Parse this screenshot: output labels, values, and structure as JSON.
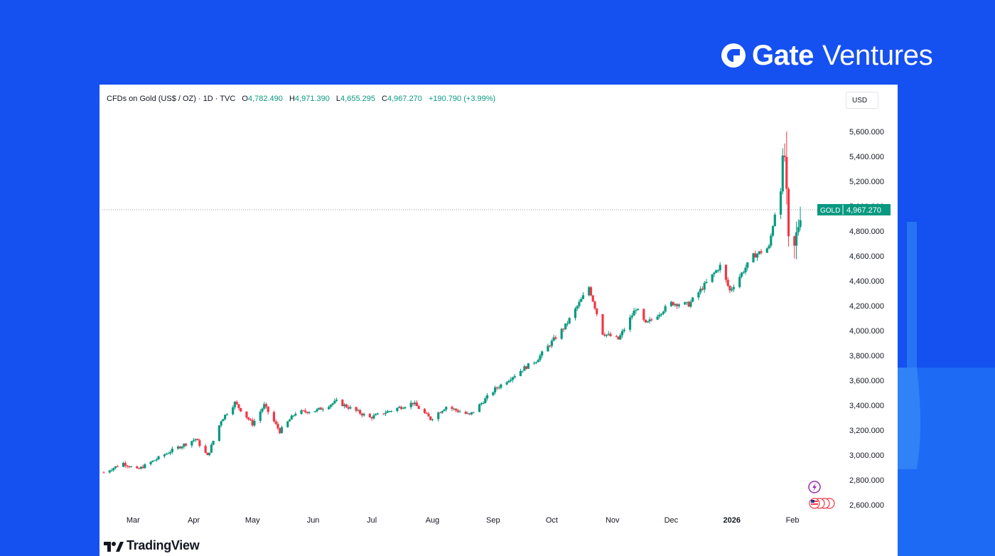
{
  "brand": {
    "name": "Gate",
    "suffix": "Ventures"
  },
  "chart_header": {
    "symbol": "CFDs on Gold (US$ / OZ) · 1D · TVC",
    "open_label": "O",
    "open": "4,782.490",
    "high_label": "H",
    "high": "4,971.390",
    "low_label": "L",
    "low": "4,655.295",
    "close_label": "C",
    "close": "4,967.270",
    "change": "+190.790 (+3.99%)",
    "currency": "USD"
  },
  "price_tag": {
    "label": "GOLD",
    "value": "4,967.270"
  },
  "footer": {
    "logo_text": "TradingView"
  },
  "colors": {
    "up": "#089981",
    "down": "#f23645",
    "background": "#1550f0"
  },
  "chart_data": {
    "type": "candlestick",
    "title": "CFDs on Gold (US$ / OZ) · 1D · TVC",
    "ylim": [
      2500,
      5700
    ],
    "yticks": [
      2600,
      2800,
      3000,
      3200,
      3400,
      3600,
      3800,
      4000,
      4200,
      4400,
      4600,
      4800,
      5000,
      5200,
      5400,
      5600
    ],
    "ytick_labels": [
      "2,600.000",
      "2,800.000",
      "3,000.000",
      "3,200.000",
      "3,400.000",
      "3,600.000",
      "3,800.000",
      "4,000.000",
      "4,200.000",
      "4,400.000",
      "4,600.000",
      "4,800.000",
      "5,000.000",
      "5,200.000",
      "5,400.000",
      "5,600.000"
    ],
    "x_start": "2025-02-14",
    "xticks": [
      {
        "label": "Mar",
        "date": "2025-03-01",
        "bold": false
      },
      {
        "label": "Apr",
        "date": "2025-04-01",
        "bold": false
      },
      {
        "label": "May",
        "date": "2025-05-01",
        "bold": false
      },
      {
        "label": "Jun",
        "date": "2025-06-01",
        "bold": false
      },
      {
        "label": "Jul",
        "date": "2025-07-01",
        "bold": false
      },
      {
        "label": "Aug",
        "date": "2025-08-01",
        "bold": false
      },
      {
        "label": "Sep",
        "date": "2025-09-01",
        "bold": false
      },
      {
        "label": "Oct",
        "date": "2025-10-01",
        "bold": false
      },
      {
        "label": "Nov",
        "date": "2025-11-01",
        "bold": false
      },
      {
        "label": "Dec",
        "date": "2025-12-01",
        "bold": false
      },
      {
        "label": "2026",
        "date": "2026-01-01",
        "bold": true
      },
      {
        "label": "Feb",
        "date": "2026-02-01",
        "bold": false
      }
    ],
    "anchors": [
      [
        "2025-02-14",
        2860
      ],
      [
        "2025-02-24",
        2935
      ],
      [
        "2025-03-03",
        2880
      ],
      [
        "2025-03-20",
        3030
      ],
      [
        "2025-04-02",
        3130
      ],
      [
        "2025-04-08",
        2990
      ],
      [
        "2025-04-15",
        3280
      ],
      [
        "2025-04-22",
        3420
      ],
      [
        "2025-05-01",
        3250
      ],
      [
        "2025-05-07",
        3400
      ],
      [
        "2025-05-15",
        3190
      ],
      [
        "2025-05-23",
        3340
      ],
      [
        "2025-06-03",
        3360
      ],
      [
        "2025-06-13",
        3430
      ],
      [
        "2025-06-30",
        3300
      ],
      [
        "2025-07-22",
        3420
      ],
      [
        "2025-07-31",
        3290
      ],
      [
        "2025-08-08",
        3390
      ],
      [
        "2025-08-20",
        3320
      ],
      [
        "2025-09-02",
        3530
      ],
      [
        "2025-09-16",
        3690
      ],
      [
        "2025-09-23",
        3760
      ],
      [
        "2025-10-08",
        4040
      ],
      [
        "2025-10-20",
        4350
      ],
      [
        "2025-10-27",
        3980
      ],
      [
        "2025-11-04",
        3930
      ],
      [
        "2025-11-13",
        4180
      ],
      [
        "2025-11-18",
        4050
      ],
      [
        "2025-12-01",
        4220
      ],
      [
        "2025-12-10",
        4210
      ],
      [
        "2025-12-26",
        4520
      ],
      [
        "2025-12-31",
        4320
      ],
      [
        "2026-01-12",
        4600
      ],
      [
        "2026-01-20",
        4670
      ],
      [
        "2026-01-28",
        5400
      ],
      [
        "2026-01-30",
        4680
      ],
      [
        "2026-02-02",
        4650
      ],
      [
        "2026-02-05",
        4967
      ]
    ]
  }
}
